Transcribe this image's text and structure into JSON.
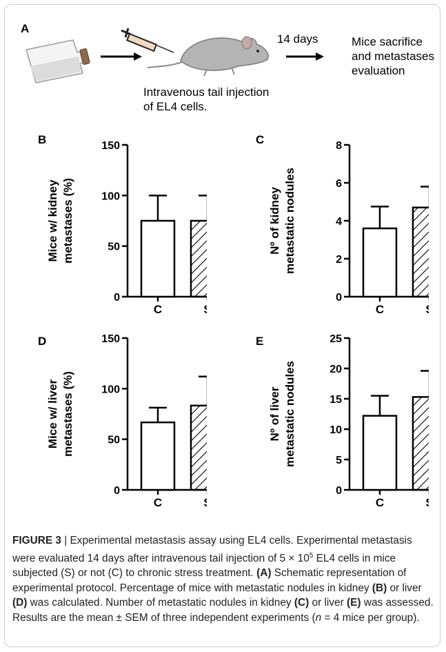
{
  "panel_a": {
    "letter": "A",
    "duration_label": "14 days",
    "outcome_label_lines": [
      "Mice sacrifice",
      "and metastases",
      "evaluation"
    ],
    "injection_label_lines": [
      "Intravenous tail injection",
      "of EL4 cells."
    ]
  },
  "chart_data": [
    {
      "panel": "B",
      "type": "bar",
      "categories": [
        "C",
        "S"
      ],
      "values": [
        75,
        75
      ],
      "errors": [
        25,
        25
      ],
      "ylabel_lines": [
        "Mice w/ kidney",
        "metastases (%)"
      ],
      "ylim": [
        0,
        150
      ],
      "yticks": [
        "0",
        "50",
        "100",
        "150"
      ],
      "ytick_values": [
        0,
        50,
        100,
        150
      ],
      "bar_fill": [
        "#ffffff",
        "hatched"
      ]
    },
    {
      "panel": "C",
      "type": "bar",
      "categories": [
        "C",
        "S"
      ],
      "values": [
        3.6,
        4.7
      ],
      "errors": [
        1.15,
        1.1
      ],
      "ylabel_lines": [
        "Nº of kidney",
        "metastatic nodules"
      ],
      "ylim": [
        0,
        8
      ],
      "yticks": [
        "0",
        "2",
        "4",
        "6",
        "8"
      ],
      "ytick_values": [
        0,
        2,
        4,
        6,
        8
      ],
      "bar_fill": [
        "#ffffff",
        "hatched"
      ]
    },
    {
      "panel": "D",
      "type": "bar",
      "categories": [
        "C",
        "S"
      ],
      "values": [
        66.7,
        83.3
      ],
      "errors": [
        14.5,
        28.7
      ],
      "ylabel_lines": [
        "Mice w/ liver",
        "metastases (%)"
      ],
      "ylim": [
        0,
        150
      ],
      "yticks": [
        "0",
        "50",
        "100",
        "150"
      ],
      "ytick_values": [
        0,
        50,
        100,
        150
      ],
      "bar_fill": [
        "#ffffff",
        "hatched"
      ]
    },
    {
      "panel": "E",
      "type": "bar",
      "categories": [
        "C",
        "S"
      ],
      "values": [
        12.2,
        15.3
      ],
      "errors": [
        3.3,
        4.3
      ],
      "ylabel_lines": [
        "Nº of liver",
        "metastatic nodules"
      ],
      "ylim": [
        0,
        25
      ],
      "yticks": [
        "0",
        "5",
        "10",
        "15",
        "20",
        "25"
      ],
      "ytick_values": [
        0,
        5,
        10,
        15,
        20,
        25
      ],
      "bar_fill": [
        "#ffffff",
        "hatched"
      ]
    }
  ],
  "caption": {
    "figure_label": "FIGURE 3",
    "title": " | Experimental metastasis assay using EL4 cells. Experimental metastasis were evaluated 14 days after intravenous tail injection of 5 × 10",
    "superscript": "5",
    "line2": " EL4 cells in mice subjected (S) or not (C) to chronic stress treatment. ",
    "a_ref": "(A)",
    "a_text": " Schematic representation of experimental protocol. Percentage of mice with metastatic nodules in kidney ",
    "b_ref": "(B)",
    "b_mid": " or liver ",
    "d_ref": "(D)",
    "d_text": " was calculated. Number of metastatic nodules in kidney ",
    "c_ref": "(C)",
    "c_mid": " or liver ",
    "e_ref": "(E)",
    "e_text": " was assessed. Results are the mean ± SEM of three independent experiments (",
    "n_text": "n",
    "n_tail": " = 4 mice per group)."
  }
}
